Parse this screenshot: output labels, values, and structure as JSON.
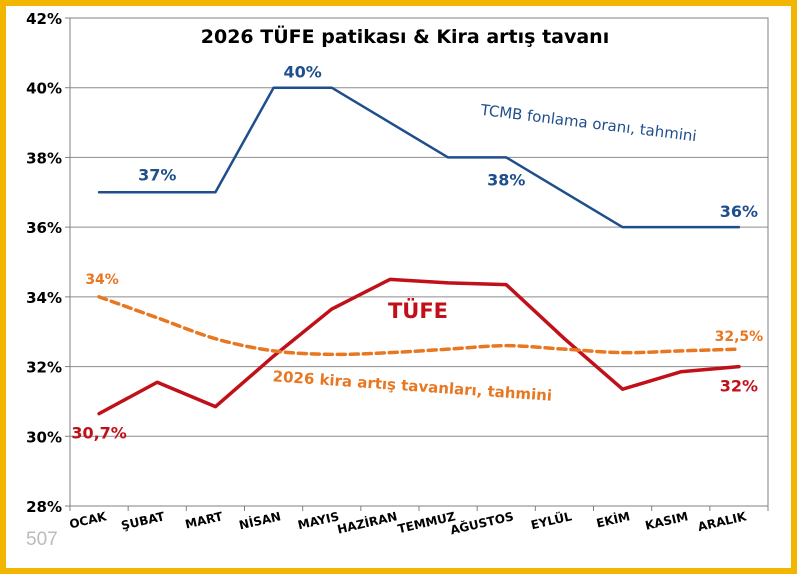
{
  "chart_data": {
    "type": "line",
    "title": "2026 TÜFE patikası & Kira artış tavanı",
    "categories": [
      "OCAK",
      "ŞUBAT",
      "MART",
      "NİSAN",
      "MAYIS",
      "HAZİRAN",
      "TEMMUZ",
      "AĞUSTOS",
      "EYLÜL",
      "EKİM",
      "KASIM",
      "ARALIK"
    ],
    "ylim": [
      28,
      42
    ],
    "yticks": [
      "28%",
      "30%",
      "32%",
      "34%",
      "36%",
      "38%",
      "40%",
      "42%"
    ],
    "ytick_values": [
      28,
      30,
      32,
      34,
      36,
      38,
      40,
      42
    ],
    "grid": true,
    "watermark": "507",
    "series": [
      {
        "name": "TCMB fonlama oranı, tahmini",
        "color": "#1f4e8c",
        "dash": false,
        "values": [
          37,
          37,
          37,
          40,
          40,
          39,
          38,
          38,
          37,
          36,
          36,
          36
        ]
      },
      {
        "name": "TÜFE",
        "color": "#c0101a",
        "dash": false,
        "values": [
          30.65,
          31.55,
          30.85,
          32.3,
          33.65,
          34.5,
          34.4,
          34.35,
          32.8,
          31.35,
          31.85,
          32.0
        ]
      },
      {
        "name": "2026 kira artış tavanları, tahmini",
        "color": "#e87722",
        "dash": true,
        "values": [
          34.0,
          33.4,
          32.8,
          32.45,
          32.35,
          32.4,
          32.5,
          32.6,
          32.5,
          32.4,
          32.45,
          32.5
        ]
      }
    ],
    "annotations": [
      {
        "text": "37%",
        "series": 0,
        "index": 1
      },
      {
        "text": "40%",
        "series": 0,
        "index": 3.5
      },
      {
        "text": "38%",
        "series": 0,
        "index": 7
      },
      {
        "text": "36%",
        "series": 0,
        "index": 11
      },
      {
        "text": "34%",
        "series": 2,
        "index": 0
      },
      {
        "text": "32,5%",
        "series": 2,
        "index": 11
      },
      {
        "text": "30,7%",
        "series": 1,
        "index": 0
      },
      {
        "text": "32%",
        "series": 1,
        "index": 11
      }
    ]
  }
}
